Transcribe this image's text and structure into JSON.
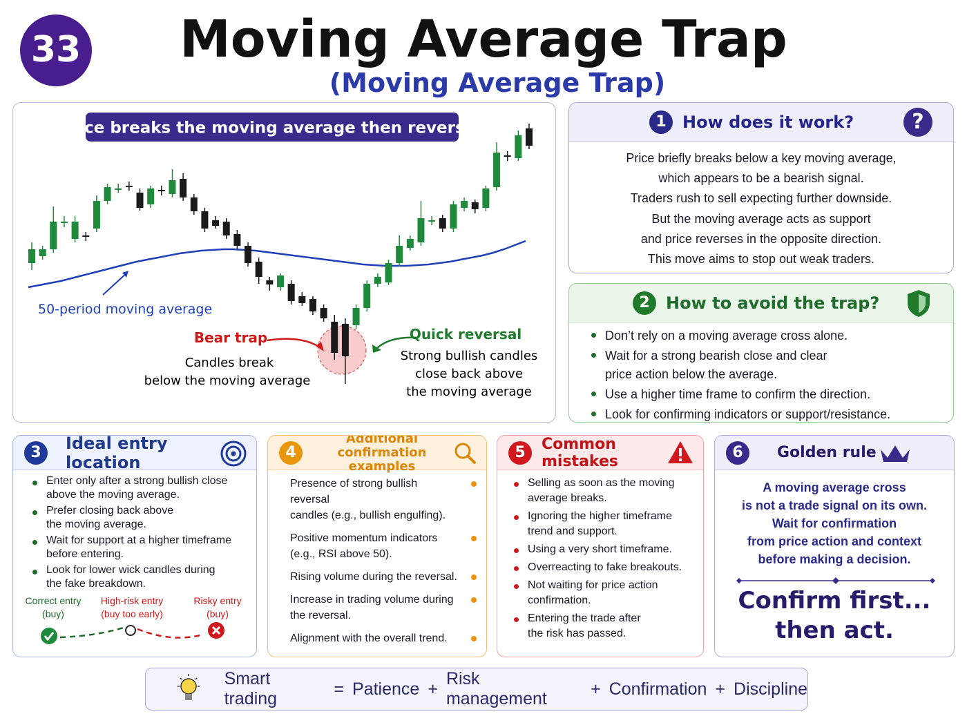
{
  "header": {
    "badge": "33",
    "title": "Moving Average Trap",
    "subtitle": "(Moving Average Trap)"
  },
  "chart_data": {
    "type": "candlestick",
    "title": "Price breaks the moving average then reverses",
    "ylim": [
      -20,
      360
    ],
    "up_color": "#1f8a3c",
    "down_color": "#1a1a1a",
    "open": [
      160,
      170,
      180,
      218,
      195,
      200,
      210,
      250,
      268,
      272,
      262,
      245,
      266,
      260,
      282,
      255,
      235,
      222,
      220,
      202,
      185,
      162,
      135,
      125,
      130,
      112,
      108,
      95,
      75,
      72,
      70,
      95,
      130,
      132,
      160,
      182,
      190,
      222,
      225,
      210,
      240,
      248,
      240,
      270,
      316,
      312,
      355
    ],
    "close": [
      180,
      180,
      220,
      220,
      220,
      198,
      250,
      270,
      268,
      271,
      240,
      268,
      264,
      280,
      255,
      235,
      210,
      214,
      200,
      185,
      160,
      140,
      129,
      142,
      105,
      102,
      90,
      80,
      30,
      25,
      95,
      130,
      140,
      160,
      185,
      195,
      225,
      222,
      210,
      245,
      250,
      238,
      268,
      320,
      314,
      345,
      330
    ],
    "high": [
      190,
      185,
      242,
      228,
      228,
      205,
      258,
      275,
      275,
      278,
      268,
      272,
      272,
      296,
      290,
      260,
      240,
      228,
      225,
      208,
      190,
      168,
      140,
      145,
      135,
      118,
      112,
      100,
      85,
      80,
      100,
      135,
      145,
      165,
      200,
      200,
      250,
      228,
      230,
      250,
      255,
      252,
      272,
      335,
      322,
      352,
      362
    ],
    "low": [
      150,
      165,
      175,
      212,
      190,
      192,
      205,
      245,
      262,
      265,
      236,
      240,
      258,
      255,
      250,
      230,
      205,
      210,
      195,
      180,
      155,
      130,
      120,
      120,
      100,
      98,
      85,
      75,
      20,
      -15,
      65,
      90,
      125,
      128,
      155,
      178,
      185,
      215,
      205,
      205,
      235,
      232,
      235,
      265,
      308,
      308,
      325
    ],
    "moving_average": {
      "label": "50-period moving average",
      "color": "#1f3fb8",
      "values": [
        125,
        128,
        131,
        134,
        138,
        142,
        146,
        150,
        154,
        158,
        162,
        165,
        168,
        171,
        174,
        176,
        178,
        179,
        180,
        180,
        179,
        178,
        176,
        174,
        172,
        170,
        168,
        166,
        164,
        162,
        160,
        158,
        157,
        156,
        156,
        156,
        157,
        158,
        160,
        162,
        165,
        168,
        171,
        175,
        180,
        186,
        192
      ]
    },
    "annotations": {
      "bear_trap": {
        "label": "Bear trap",
        "lines": [
          "Candles break",
          "below the moving average"
        ]
      },
      "reversal": {
        "label": "Quick reversal",
        "lines": [
          "Strong bullish candles",
          "close back above",
          "the moving average"
        ]
      }
    }
  },
  "sections": {
    "how": {
      "number": "1",
      "title": "How does it work?",
      "icon": "?",
      "lines": [
        "Price briefly breaks below a key moving average,",
        "which appears to be a bearish signal.",
        "Traders rush to sell expecting further downside.",
        "But the moving average acts as support",
        "and price reverses in the opposite direction.",
        "This move aims to stop out weak traders."
      ]
    },
    "avoid": {
      "number": "2",
      "title": "How to avoid the trap?",
      "bullets": [
        [
          "Don’t rely on a moving average cross alone."
        ],
        [
          "Wait for a strong bearish close and clear",
          "price action below the average."
        ],
        [
          "Use a higher time frame to confirm the direction."
        ],
        [
          "Look for confirming indicators or support/resistance."
        ]
      ]
    },
    "entry": {
      "number": "3",
      "title": "Ideal entry location",
      "bullets": [
        [
          "Enter only after a strong bullish close",
          "above the moving average."
        ],
        [
          "Prefer closing back above",
          "the moving average."
        ],
        [
          "Wait for support at a higher timeframe",
          "before entering."
        ],
        [
          "Look for lower wick candles during",
          "the fake breakdown."
        ]
      ],
      "labels": [
        [
          "Correct entry",
          "(buy)"
        ],
        [
          "High-risk entry",
          "(buy too early)"
        ],
        [
          "Risky  entry",
          "(buy)"
        ]
      ]
    },
    "confirm": {
      "number": "4",
      "title": [
        "Additional confirmation",
        "examples"
      ],
      "items": [
        [
          "Presence of strong bullish reversal",
          "candles (e.g., bullish engulfing)."
        ],
        [
          "Positive momentum indicators",
          "(e.g., RSI above 50)."
        ],
        [
          "Rising volume during the reversal."
        ],
        [
          "Increase in trading volume during",
          "the reversal."
        ],
        [
          "Alignment with the overall trend."
        ]
      ]
    },
    "mistakes": {
      "number": "5",
      "title": "Common mistakes",
      "items": [
        [
          "Selling as soon as the moving",
          "average breaks."
        ],
        [
          "Ignoring the higher timeframe",
          "trend and support."
        ],
        [
          "Using a very short timeframe."
        ],
        [
          "Overreacting to fake breakouts."
        ],
        [
          "Not waiting for price action",
          "confirmation."
        ],
        [
          "Entering the trade after",
          "the risk has passed."
        ]
      ]
    },
    "golden": {
      "number": "6",
      "title": "Golden rule",
      "lines": [
        "A moving average cross",
        "is not a trade signal on its own.",
        "Wait for confirmation",
        "from price action and context",
        "before making a decision."
      ],
      "motto": [
        "Confirm first...",
        "then act."
      ]
    }
  },
  "footer": {
    "items": [
      "Smart trading",
      "=",
      "Patience",
      "+",
      "Risk management",
      "+",
      "Confirmation",
      "+",
      "Discipline"
    ]
  }
}
